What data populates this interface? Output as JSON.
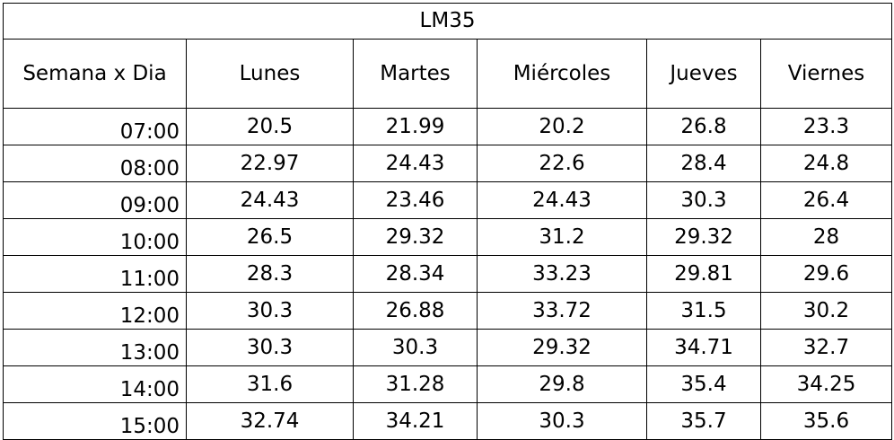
{
  "title": "LM35",
  "header": {
    "corner": "Semana x Dia",
    "days": [
      "Lunes",
      "Martes",
      "Miércoles",
      "Jueves",
      "Viernes"
    ]
  },
  "rows": [
    {
      "time": "07:00",
      "values": [
        "20.5",
        "21.99",
        "20.2",
        "26.8",
        "23.3"
      ]
    },
    {
      "time": "08:00",
      "values": [
        "22.97",
        "24.43",
        "22.6",
        "28.4",
        "24.8"
      ]
    },
    {
      "time": "09:00",
      "values": [
        "24.43",
        "23.46",
        "24.43",
        "30.3",
        "26.4"
      ]
    },
    {
      "time": "10:00",
      "values": [
        "26.5",
        "29.32",
        "31.2",
        "29.32",
        "28"
      ]
    },
    {
      "time": "11:00",
      "values": [
        "28.3",
        "28.34",
        "33.23",
        "29.81",
        "29.6"
      ]
    },
    {
      "time": "12:00",
      "values": [
        "30.3",
        "26.88",
        "33.72",
        "31.5",
        "30.2"
      ]
    },
    {
      "time": "13:00",
      "values": [
        "30.3",
        "30.3",
        "29.32",
        "34.71",
        "32.7"
      ]
    },
    {
      "time": "14:00",
      "values": [
        "31.6",
        "31.28",
        "29.8",
        "35.4",
        "34.25"
      ]
    },
    {
      "time": "15:00",
      "values": [
        "32.74",
        "34.21",
        "30.3",
        "35.7",
        "35.6"
      ]
    }
  ]
}
